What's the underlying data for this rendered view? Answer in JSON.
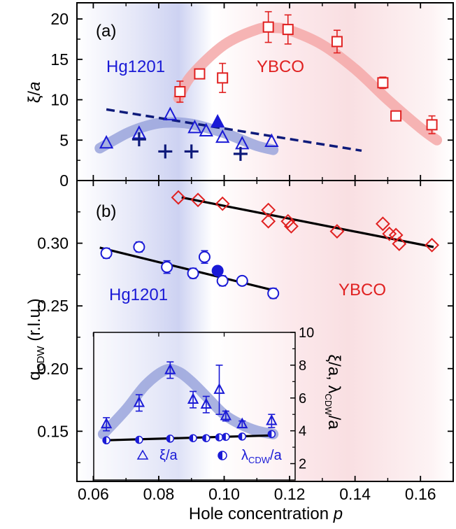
{
  "figure": {
    "xlabel": "Hole concentration",
    "xlabel_var": "p",
    "top_ylabel_main": "ξ/",
    "top_ylabel_var": "a",
    "bottom_ylabel_main": "q",
    "bottom_ylabel_sub": "CDW",
    "bottom_ylabel_unit": " (r.l.u.)",
    "inset_ylabel_a": "ξ/a, λ",
    "inset_ylabel_sub": "CDW",
    "inset_ylabel_b": "/a",
    "panel_a": "(a)",
    "panel_b": "(b)",
    "hg_label": "Hg1201",
    "ybco_label": "YBCO",
    "legend_xi": "ξ/a",
    "legend_lambda_main": "λ",
    "legend_lambda_sub": "CDW",
    "legend_lambda_rest": "/a",
    "colors": {
      "hg": "#1a1ad6",
      "ybco": "#e02020",
      "dark_navy": "#0d1a7a",
      "hg_band": "#9aa4dc",
      "ybco_band": "#f5a8a8"
    }
  },
  "chart_data": [
    {
      "panel": "(a)",
      "type": "scatter",
      "xlim": [
        0.055,
        0.17
      ],
      "ylim": [
        0,
        22
      ],
      "xticks": [
        0.06,
        0.08,
        0.1,
        0.12,
        0.14,
        0.16
      ],
      "yticks": [
        0,
        5,
        10,
        15,
        20
      ],
      "series": [
        {
          "name": "YBCO",
          "marker": "square-open",
          "x": [
            0.0865,
            0.0925,
            0.0995,
            0.1135,
            0.1195,
            0.1345,
            0.1485,
            0.1525,
            0.1635
          ],
          "y": [
            11.0,
            13.2,
            12.7,
            19.0,
            18.7,
            17.2,
            12.1,
            8.0,
            6.9
          ],
          "err": [
            1.3,
            0.5,
            1.8,
            1.9,
            1.8,
            1.4,
            0.7,
            0.5,
            1.1
          ]
        },
        {
          "name": "Hg1201",
          "marker": "triangle-open",
          "x": [
            0.064,
            0.074,
            0.0835,
            0.091,
            0.0945,
            0.0995,
            0.1055,
            0.1145
          ],
          "y": [
            4.6,
            5.8,
            8.1,
            6.5,
            6.1,
            5.3,
            4.5,
            4.8
          ],
          "err": [
            0,
            0,
            0,
            0,
            0,
            0,
            0,
            0
          ]
        },
        {
          "marker": "triangle-filled",
          "x": [
            0.098
          ],
          "y": [
            7.2
          ]
        },
        {
          "marker": "plus",
          "x": [
            0.074,
            0.082,
            0.09,
            0.105
          ],
          "y": [
            5.1,
            3.6,
            3.6,
            3.3
          ]
        },
        {
          "style": "dashed-line",
          "x": [
            0.064,
            0.142
          ],
          "y": [
            8.8,
            3.7
          ]
        },
        {
          "style": "band",
          "name": "YBCO",
          "x": [
            0.086,
            0.09,
            0.1,
            0.11,
            0.115,
            0.12,
            0.13,
            0.14,
            0.15,
            0.16,
            0.165
          ],
          "y": [
            10.2,
            13.0,
            16.8,
            18.7,
            18.9,
            18.6,
            16.8,
            13.8,
            10.0,
            6.5,
            5.0
          ]
        },
        {
          "style": "band",
          "name": "Hg1201",
          "x": [
            0.062,
            0.07,
            0.075,
            0.08,
            0.085,
            0.09,
            0.095,
            0.1,
            0.105,
            0.11,
            0.115
          ],
          "y": [
            4.0,
            5.8,
            6.6,
            7.1,
            7.2,
            7.0,
            6.5,
            5.9,
            5.1,
            4.3,
            3.8
          ]
        }
      ]
    },
    {
      "panel": "(b)",
      "type": "scatter",
      "xlim": [
        0.055,
        0.17
      ],
      "ylim": [
        0.11,
        0.35
      ],
      "yticks": [
        0.15,
        0.2,
        0.25,
        0.3
      ],
      "series": [
        {
          "name": "YBCO",
          "marker": "diamond-open",
          "x": [
            0.086,
            0.092,
            0.0995,
            0.1135,
            0.1135,
            0.1195,
            0.1205,
            0.1345,
            0.1485,
            0.1505,
            0.1525,
            0.1535,
            0.1635
          ],
          "y": [
            0.3365,
            0.3345,
            0.3315,
            0.3265,
            0.3175,
            0.3175,
            0.3135,
            0.3095,
            0.3155,
            0.3075,
            0.3065,
            0.2995,
            0.2985
          ]
        },
        {
          "name": "Hg1201",
          "marker": "circle-open",
          "x": [
            0.064,
            0.074,
            0.0825,
            0.0905,
            0.094,
            0.0995,
            0.1055,
            0.115
          ],
          "y": [
            0.292,
            0.297,
            0.281,
            0.276,
            0.289,
            0.27,
            0.27,
            0.26
          ],
          "err": [
            0.004,
            0.004,
            0.005,
            0.004,
            0.005,
            0.004,
            0.003,
            0.004
          ]
        },
        {
          "marker": "circle-filled",
          "x": [
            0.098
          ],
          "y": [
            0.278
          ]
        },
        {
          "style": "line",
          "x": [
            0.062,
            0.115
          ],
          "y": [
            0.2965,
            0.2625
          ]
        },
        {
          "style": "line",
          "x": [
            0.087,
            0.164
          ],
          "y": [
            0.3365,
            0.297
          ]
        }
      ]
    },
    {
      "panel": "inset",
      "type": "scatter",
      "xlim": [
        0.06,
        0.116
      ],
      "ylim": [
        1,
        10
      ],
      "yticks": [
        2,
        4,
        6,
        8,
        10
      ],
      "series": [
        {
          "name": "ξ/a",
          "marker": "triangle-open",
          "x": [
            0.064,
            0.074,
            0.0835,
            0.0905,
            0.0945,
            0.0985,
            0.1005,
            0.1055,
            0.1145
          ],
          "y": [
            4.4,
            5.7,
            7.7,
            5.9,
            5.6,
            6.5,
            4.9,
            4.4,
            4.6
          ],
          "err": [
            0.4,
            0.5,
            0.5,
            0.5,
            0.5,
            1.5,
            0.3,
            0.2,
            0.4
          ]
        },
        {
          "name": "λCDW/a",
          "marker": "circle-half",
          "x": [
            0.064,
            0.074,
            0.0835,
            0.0905,
            0.0945,
            0.0985,
            0.1005,
            0.1055,
            0.1145
          ],
          "y": [
            3.42,
            3.45,
            3.52,
            3.55,
            3.55,
            3.6,
            3.63,
            3.65,
            3.8
          ]
        },
        {
          "style": "line",
          "x": [
            0.063,
            0.115
          ],
          "y": [
            3.42,
            3.72
          ]
        },
        {
          "style": "band",
          "x": [
            0.063,
            0.07,
            0.076,
            0.082,
            0.086,
            0.09,
            0.095,
            0.1,
            0.105,
            0.11,
            0.115
          ],
          "y": [
            3.8,
            5.3,
            6.8,
            7.7,
            7.6,
            7.0,
            6.0,
            5.0,
            4.4,
            4.0,
            3.8
          ]
        }
      ]
    }
  ]
}
